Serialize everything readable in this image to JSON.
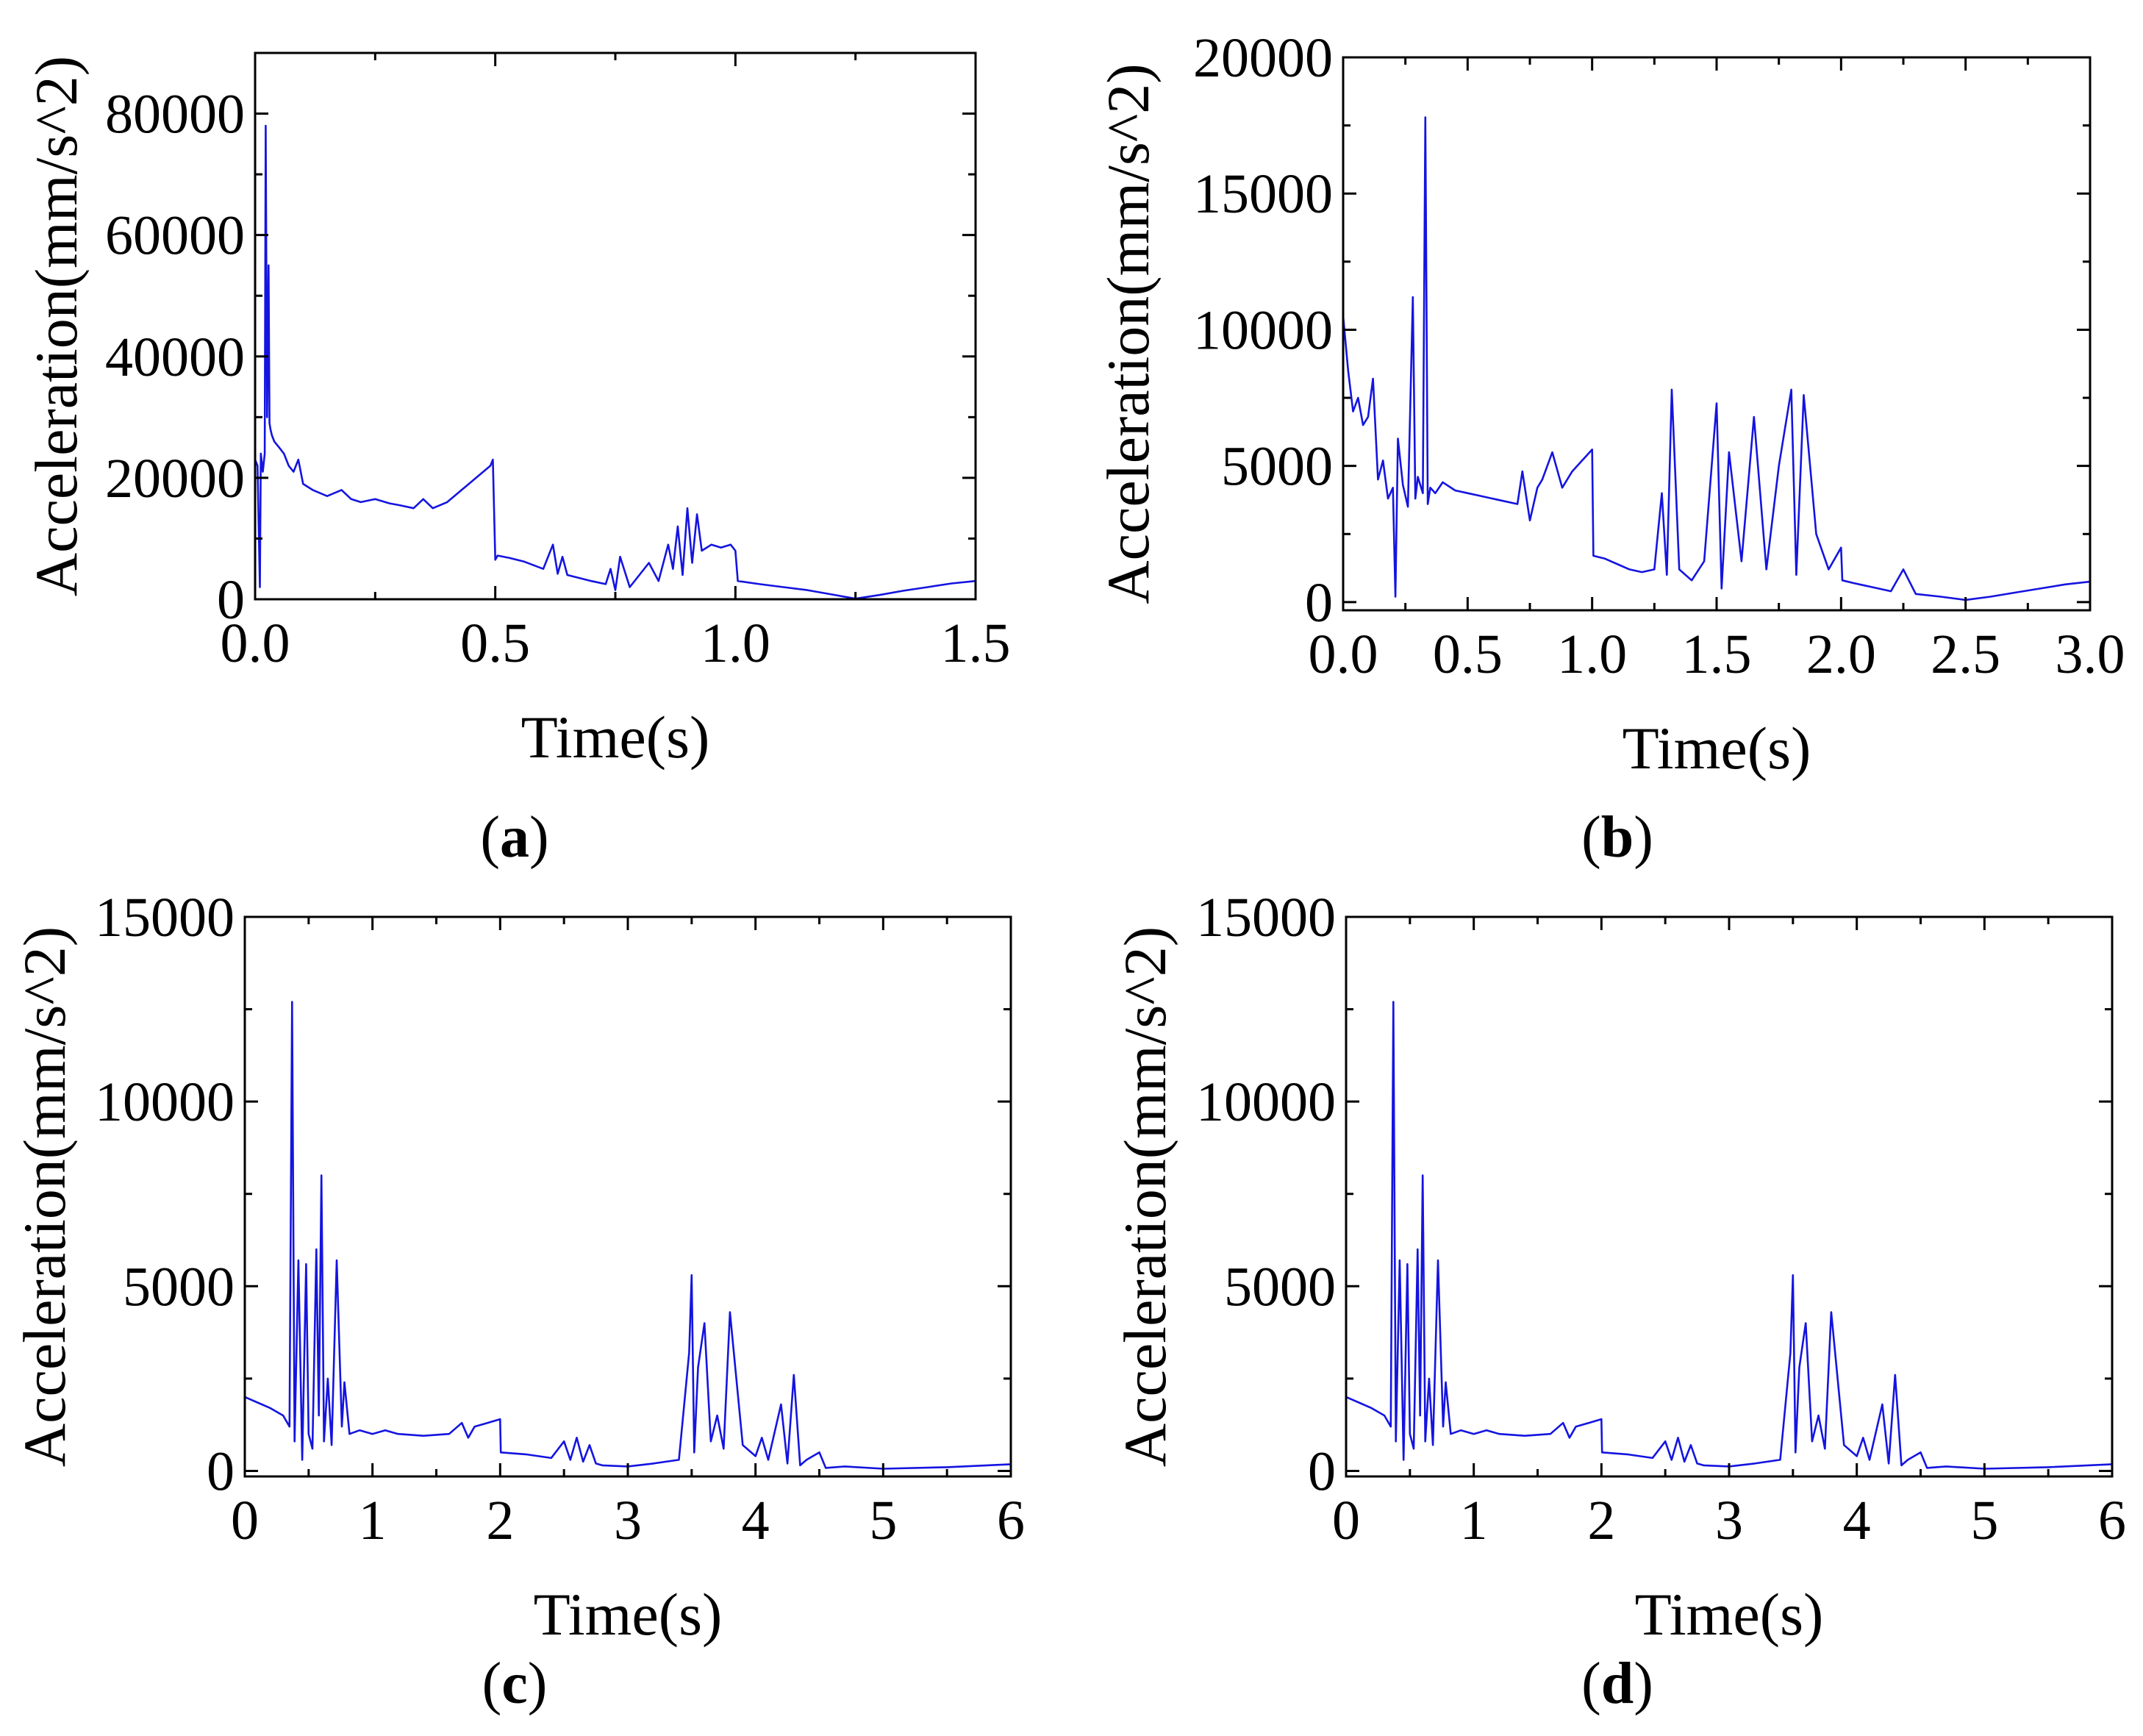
{
  "figure": {
    "panels": [
      "a",
      "b",
      "c",
      "d"
    ]
  },
  "chart_data": [
    {
      "id": "a",
      "type": "line",
      "caption_letter": "a",
      "xlabel": "Time(s)",
      "ylabel": "Acceleration(mm/s^2)",
      "xlim": [
        0,
        1.5
      ],
      "ylim": [
        0,
        90000
      ],
      "xticks": [
        0.0,
        0.5,
        1.0,
        1.5
      ],
      "xtick_labels": [
        "0.0",
        "0.5",
        "1.0",
        "1.5"
      ],
      "yticks": [
        0,
        20000,
        40000,
        60000,
        80000
      ],
      "ytick_labels": [
        "0",
        "20000",
        "40000",
        "60000",
        "80000"
      ],
      "series": [
        {
          "name": "acceleration",
          "color": "#1414e0",
          "x": [
            0.0,
            0.005,
            0.01,
            0.012,
            0.016,
            0.02,
            0.022,
            0.025,
            0.028,
            0.03,
            0.032,
            0.035,
            0.04,
            0.05,
            0.06,
            0.07,
            0.08,
            0.09,
            0.1,
            0.12,
            0.15,
            0.18,
            0.2,
            0.22,
            0.25,
            0.28,
            0.3,
            0.33,
            0.35,
            0.37,
            0.4,
            0.43,
            0.46,
            0.49,
            0.495,
            0.5,
            0.505,
            0.53,
            0.56,
            0.6,
            0.62,
            0.63,
            0.64,
            0.65,
            0.66,
            0.7,
            0.73,
            0.74,
            0.75,
            0.76,
            0.78,
            0.8,
            0.82,
            0.84,
            0.86,
            0.87,
            0.88,
            0.89,
            0.9,
            0.91,
            0.92,
            0.93,
            0.95,
            0.97,
            0.99,
            1.0,
            1.005,
            1.05,
            1.1,
            1.15,
            1.2,
            1.25,
            1.3,
            1.35,
            1.4,
            1.45,
            1.5
          ],
          "y": [
            23000,
            22000,
            2000,
            24000,
            21000,
            24000,
            78000,
            30000,
            55000,
            29000,
            28000,
            27000,
            26000,
            25000,
            24000,
            22000,
            21000,
            23000,
            19000,
            18000,
            17000,
            18000,
            16500,
            16000,
            16500,
            15800,
            15500,
            15000,
            16500,
            15000,
            16000,
            18000,
            20000,
            22000,
            23000,
            6500,
            7200,
            6800,
            6200,
            5000,
            9000,
            4200,
            7000,
            4000,
            3800,
            3000,
            2500,
            5000,
            1500,
            7000,
            2000,
            4000,
            6000,
            3000,
            9000,
            5000,
            12000,
            4000,
            15000,
            6000,
            14000,
            8000,
            9000,
            8500,
            9000,
            8000,
            3000,
            2500,
            2000,
            1500,
            800,
            100,
            700,
            1400,
            2000,
            2600,
            3000
          ]
        }
      ]
    },
    {
      "id": "b",
      "type": "line",
      "caption_letter": "b",
      "xlabel": "Time(s)",
      "ylabel": "Acceleration(mm/s^2)",
      "xlim": [
        0,
        3.0
      ],
      "ylim": [
        -300,
        20000
      ],
      "xticks": [
        0.0,
        0.5,
        1.0,
        1.5,
        2.0,
        2.5,
        3.0
      ],
      "xtick_labels": [
        "0.0",
        "0.5",
        "1.0",
        "1.5",
        "2.0",
        "2.5",
        "3.0"
      ],
      "yticks": [
        0,
        5000,
        10000,
        15000,
        20000
      ],
      "ytick_labels": [
        "0",
        "5000",
        "10000",
        "15000",
        "20000"
      ],
      "series": [
        {
          "name": "acceleration",
          "color": "#1414e0",
          "x": [
            0.0,
            0.02,
            0.04,
            0.06,
            0.08,
            0.1,
            0.12,
            0.14,
            0.16,
            0.18,
            0.2,
            0.21,
            0.22,
            0.24,
            0.26,
            0.28,
            0.29,
            0.3,
            0.32,
            0.33,
            0.34,
            0.35,
            0.37,
            0.4,
            0.45,
            0.5,
            0.55,
            0.6,
            0.65,
            0.7,
            0.72,
            0.75,
            0.78,
            0.8,
            0.84,
            0.88,
            0.92,
            0.96,
            1.0,
            1.005,
            1.05,
            1.1,
            1.15,
            1.2,
            1.25,
            1.28,
            1.3,
            1.32,
            1.35,
            1.4,
            1.45,
            1.5,
            1.52,
            1.55,
            1.6,
            1.65,
            1.7,
            1.75,
            1.8,
            1.82,
            1.85,
            1.9,
            1.95,
            2.0,
            2.005,
            2.05,
            2.1,
            2.15,
            2.2,
            2.25,
            2.3,
            2.4,
            2.5,
            2.6,
            2.7,
            2.8,
            2.9,
            3.0
          ],
          "y": [
            10500,
            8500,
            7000,
            7500,
            6500,
            6800,
            8200,
            4500,
            5200,
            3800,
            4200,
            200,
            6000,
            4300,
            3500,
            11200,
            3800,
            4600,
            4000,
            17800,
            3600,
            4200,
            4000,
            4400,
            4100,
            4000,
            3900,
            3800,
            3700,
            3600,
            4800,
            3000,
            4200,
            4500,
            5500,
            4200,
            4800,
            5200,
            5600,
            1700,
            1600,
            1400,
            1200,
            1100,
            1200,
            4000,
            1000,
            7800,
            1200,
            800,
            1500,
            7300,
            500,
            5500,
            1500,
            6800,
            1200,
            5000,
            7800,
            1000,
            7600,
            2500,
            1200,
            2000,
            800,
            700,
            600,
            500,
            400,
            1200,
            300,
            200,
            80,
            200,
            350,
            500,
            650,
            750
          ]
        }
      ]
    },
    {
      "id": "c",
      "type": "line",
      "caption_letter": "c",
      "xlabel": "Time(s)",
      "ylabel": "Acceleration(mm/s^2)",
      "xlim": [
        0,
        6
      ],
      "ylim": [
        -150,
        15000
      ],
      "xticks": [
        0,
        1,
        2,
        3,
        4,
        5,
        6
      ],
      "xtick_labels": [
        "0",
        "1",
        "2",
        "3",
        "4",
        "5",
        "6"
      ],
      "yticks": [
        0,
        5000,
        10000,
        15000
      ],
      "ytick_labels": [
        "0",
        "5000",
        "10000",
        "15000"
      ],
      "series": [
        {
          "name": "acceleration",
          "color": "#1414e0",
          "x": [
            0.0,
            0.1,
            0.2,
            0.3,
            0.35,
            0.37,
            0.39,
            0.42,
            0.45,
            0.48,
            0.5,
            0.53,
            0.56,
            0.58,
            0.6,
            0.62,
            0.65,
            0.68,
            0.72,
            0.76,
            0.78,
            0.82,
            0.9,
            1.0,
            1.1,
            1.2,
            1.4,
            1.6,
            1.7,
            1.75,
            1.8,
            1.9,
            2.0,
            2.005,
            2.2,
            2.4,
            2.5,
            2.55,
            2.6,
            2.65,
            2.7,
            2.75,
            2.8,
            3.0,
            3.2,
            3.4,
            3.48,
            3.5,
            3.52,
            3.55,
            3.6,
            3.65,
            3.7,
            3.75,
            3.8,
            3.9,
            4.0,
            4.05,
            4.1,
            4.2,
            4.25,
            4.3,
            4.35,
            4.4,
            4.5,
            4.55,
            4.7,
            5.0,
            5.5,
            6.0
          ],
          "y": [
            2000,
            1850,
            1700,
            1500,
            1200,
            12700,
            800,
            5700,
            300,
            5600,
            1000,
            600,
            6000,
            1500,
            8000,
            800,
            2500,
            700,
            5700,
            1200,
            2400,
            1000,
            1100,
            1000,
            1100,
            1000,
            950,
            1000,
            1300,
            900,
            1200,
            1300,
            1400,
            500,
            450,
            350,
            800,
            300,
            900,
            250,
            700,
            200,
            150,
            120,
            200,
            300,
            3200,
            5300,
            500,
            2800,
            4000,
            800,
            1500,
            600,
            4300,
            700,
            400,
            900,
            300,
            1800,
            200,
            2600,
            150,
            300,
            500,
            80,
            120,
            60,
            100,
            180
          ]
        }
      ]
    },
    {
      "id": "d",
      "type": "line",
      "caption_letter": "d",
      "xlabel": "Time(s)",
      "ylabel": "Acceleration(mm/s^2)",
      "xlim": [
        0,
        6
      ],
      "ylim": [
        -150,
        15000
      ],
      "xticks": [
        0,
        1,
        2,
        3,
        4,
        5,
        6
      ],
      "xtick_labels": [
        "0",
        "1",
        "2",
        "3",
        "4",
        "5",
        "6"
      ],
      "yticks": [
        0,
        5000,
        10000,
        15000
      ],
      "ytick_labels": [
        "0",
        "5000",
        "10000",
        "15000"
      ],
      "series": [
        {
          "name": "acceleration",
          "color": "#1414e0",
          "x": [
            0.0,
            0.1,
            0.2,
            0.3,
            0.35,
            0.37,
            0.39,
            0.42,
            0.45,
            0.48,
            0.5,
            0.53,
            0.56,
            0.58,
            0.6,
            0.62,
            0.65,
            0.68,
            0.72,
            0.76,
            0.78,
            0.82,
            0.9,
            1.0,
            1.1,
            1.2,
            1.4,
            1.6,
            1.7,
            1.75,
            1.8,
            1.9,
            2.0,
            2.005,
            2.2,
            2.4,
            2.5,
            2.55,
            2.6,
            2.65,
            2.7,
            2.75,
            2.8,
            3.0,
            3.2,
            3.4,
            3.48,
            3.5,
            3.52,
            3.55,
            3.6,
            3.65,
            3.7,
            3.75,
            3.8,
            3.9,
            4.0,
            4.05,
            4.1,
            4.2,
            4.25,
            4.3,
            4.35,
            4.4,
            4.5,
            4.55,
            4.7,
            5.0,
            5.5,
            6.0
          ],
          "y": [
            2000,
            1850,
            1700,
            1500,
            1200,
            12700,
            800,
            5700,
            300,
            5600,
            1000,
            600,
            6000,
            1500,
            8000,
            800,
            2500,
            700,
            5700,
            1200,
            2400,
            1000,
            1100,
            1000,
            1100,
            1000,
            950,
            1000,
            1300,
            900,
            1200,
            1300,
            1400,
            500,
            450,
            350,
            800,
            300,
            900,
            250,
            700,
            200,
            150,
            120,
            200,
            300,
            3200,
            5300,
            500,
            2800,
            4000,
            800,
            1500,
            600,
            4300,
            700,
            400,
            900,
            300,
            1800,
            200,
            2600,
            150,
            300,
            500,
            80,
            120,
            60,
            100,
            180
          ]
        }
      ]
    }
  ]
}
